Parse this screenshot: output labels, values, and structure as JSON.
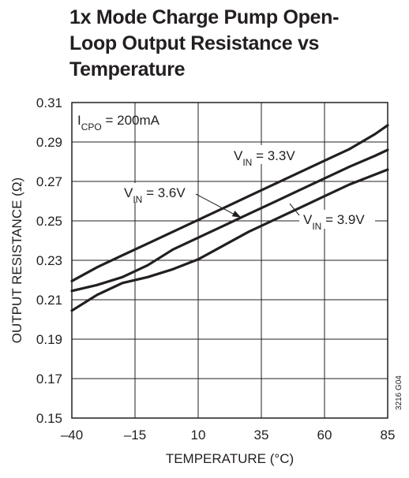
{
  "title_lines": [
    "1x Mode Charge Pump Open-",
    "Loop Output Resistance vs",
    "Temperature"
  ],
  "chart_data": {
    "type": "line",
    "title": "1x Mode Charge Pump Open-Loop Output Resistance vs Temperature",
    "xlabel": "TEMPERATURE (°C)",
    "ylabel": "OUTPUT RESISTANCE (Ω)",
    "xlim": [
      -40,
      85
    ],
    "ylim": [
      0.15,
      0.31
    ],
    "x_ticks": [
      -40,
      -15,
      10,
      35,
      60,
      85
    ],
    "x_tick_labels": [
      "–40",
      "–15",
      "10",
      "35",
      "60",
      "85"
    ],
    "y_ticks": [
      0.15,
      0.17,
      0.19,
      0.21,
      0.23,
      0.25,
      0.27,
      0.29,
      0.31
    ],
    "y_tick_labels": [
      "0.15",
      "0.17",
      "0.19",
      "0.21",
      "0.23",
      "0.25",
      "0.27",
      "0.29",
      "0.31"
    ],
    "grid": true,
    "condition": {
      "main": "I",
      "sub": "CPO",
      "rest": " = 200mA"
    },
    "figure_code": "3216 G04",
    "series": [
      {
        "name": "3.3V",
        "label_main": "V",
        "label_sub": "IN",
        "label_rest": " = 3.3V",
        "x": [
          -40,
          -30,
          -20,
          -10,
          0,
          10,
          20,
          30,
          40,
          50,
          60,
          70,
          80,
          85
        ],
        "y": [
          0.2195,
          0.2265,
          0.2325,
          0.2385,
          0.2445,
          0.2505,
          0.2565,
          0.2625,
          0.2685,
          0.2745,
          0.2805,
          0.2865,
          0.294,
          0.2985
        ]
      },
      {
        "name": "3.6V",
        "label_main": "V",
        "label_sub": "IN",
        "label_rest": " = 3.6V",
        "x": [
          -40,
          -30,
          -20,
          -15,
          -10,
          0,
          10,
          20,
          30,
          40,
          50,
          60,
          70,
          80,
          85
        ],
        "y": [
          0.2145,
          0.2175,
          0.2215,
          0.2245,
          0.2275,
          0.2355,
          0.2415,
          0.2475,
          0.2535,
          0.2595,
          0.2655,
          0.2715,
          0.2775,
          0.283,
          0.286
        ]
      },
      {
        "name": "3.9V",
        "label_main": "V",
        "label_sub": "IN",
        "label_rest": " = 3.9V",
        "x": [
          -40,
          -30,
          -20,
          -10,
          0,
          10,
          20,
          30,
          40,
          50,
          60,
          70,
          80,
          85
        ],
        "y": [
          0.2045,
          0.2125,
          0.2185,
          0.2215,
          0.2255,
          0.2305,
          0.2375,
          0.2445,
          0.2505,
          0.2565,
          0.2625,
          0.2685,
          0.2735,
          0.276
        ]
      }
    ]
  }
}
